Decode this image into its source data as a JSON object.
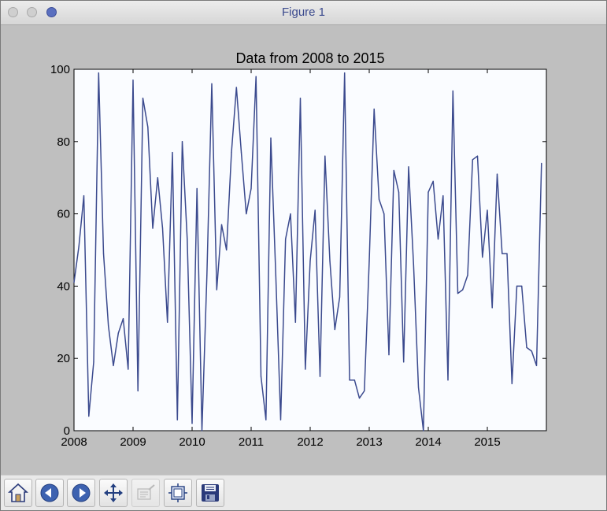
{
  "window": {
    "title": "Figure 1"
  },
  "toolbar": {
    "buttons": [
      {
        "name": "home-button",
        "icon": "home-icon",
        "tooltip": ""
      },
      {
        "name": "back-button",
        "icon": "arrow-left-icon",
        "tooltip": ""
      },
      {
        "name": "forward-button",
        "icon": "arrow-right-icon",
        "tooltip": ""
      },
      {
        "name": "pan-button",
        "icon": "move-arrows-icon",
        "tooltip": ""
      },
      {
        "name": "zoom-button",
        "icon": "zoom-rect-icon",
        "tooltip": ""
      },
      {
        "name": "subplots-button",
        "icon": "subplots-icon",
        "tooltip": ""
      },
      {
        "name": "save-button",
        "icon": "floppy-disk-icon",
        "tooltip": ""
      }
    ]
  },
  "chart_data": {
    "type": "line",
    "title": "Data from 2008 to 2015",
    "xlabel": "",
    "ylabel": "",
    "xlim": [
      "2008-01",
      "2016-01"
    ],
    "ylim": [
      0,
      100
    ],
    "x_ticks": [
      "2008",
      "2009",
      "2010",
      "2011",
      "2012",
      "2013",
      "2014",
      "2015"
    ],
    "y_ticks": [
      "0",
      "20",
      "40",
      "60",
      "80",
      "100"
    ],
    "grid": false,
    "legend": "none",
    "line_color": "#3b4a8e",
    "plot_background": "#fafcff",
    "figure_background": "#bfbfbf",
    "series": [
      {
        "x": [
          "2008-01",
          "2008-02",
          "2008-03",
          "2008-04",
          "2008-05",
          "2008-06",
          "2008-07",
          "2008-08",
          "2008-09",
          "2008-10",
          "2008-11",
          "2008-12",
          "2009-01",
          "2009-02",
          "2009-03",
          "2009-04",
          "2009-05",
          "2009-06",
          "2009-07",
          "2009-08",
          "2009-09",
          "2009-10",
          "2009-11",
          "2009-12",
          "2010-01",
          "2010-02",
          "2010-03",
          "2010-04",
          "2010-05",
          "2010-06",
          "2010-07",
          "2010-08",
          "2010-09",
          "2010-10",
          "2010-11",
          "2010-12",
          "2011-01",
          "2011-02",
          "2011-03",
          "2011-04",
          "2011-05",
          "2011-06",
          "2011-07",
          "2011-08",
          "2011-09",
          "2011-10",
          "2011-11",
          "2011-12",
          "2012-01",
          "2012-02",
          "2012-03",
          "2012-04",
          "2012-05",
          "2012-06",
          "2012-07",
          "2012-08",
          "2012-09",
          "2012-10",
          "2012-11",
          "2012-12",
          "2013-01",
          "2013-02",
          "2013-03",
          "2013-04",
          "2013-05",
          "2013-06",
          "2013-07",
          "2013-08",
          "2013-09",
          "2013-10",
          "2013-11",
          "2013-12",
          "2014-01",
          "2014-02",
          "2014-03",
          "2014-04",
          "2014-05",
          "2014-06",
          "2014-07",
          "2014-08",
          "2014-09",
          "2014-10",
          "2014-11",
          "2014-12",
          "2015-01",
          "2015-02",
          "2015-03",
          "2015-04",
          "2015-05",
          "2015-06",
          "2015-07",
          "2015-08",
          "2015-09",
          "2015-10",
          "2015-11",
          "2015-12"
        ],
        "values": [
          41,
          51,
          65,
          4,
          19,
          99,
          49,
          29,
          18,
          27,
          31,
          17,
          97,
          11,
          92,
          84,
          56,
          70,
          56,
          30,
          77,
          3,
          80,
          53,
          2,
          67,
          0,
          43,
          96,
          39,
          57,
          50,
          77,
          95,
          77,
          60,
          67,
          98,
          15,
          3,
          81,
          43,
          3,
          53,
          60,
          30,
          92,
          17,
          47,
          61,
          15,
          76,
          47,
          28,
          37,
          99,
          14,
          14,
          9,
          11,
          47,
          89,
          64,
          60,
          21,
          72,
          66,
          19,
          73,
          46,
          12,
          0,
          66,
          69,
          53,
          65,
          14,
          94,
          38,
          39,
          43,
          75,
          76,
          48,
          61,
          34,
          71,
          49,
          49,
          13,
          40,
          40,
          23,
          22,
          18,
          74
        ]
      }
    ]
  }
}
